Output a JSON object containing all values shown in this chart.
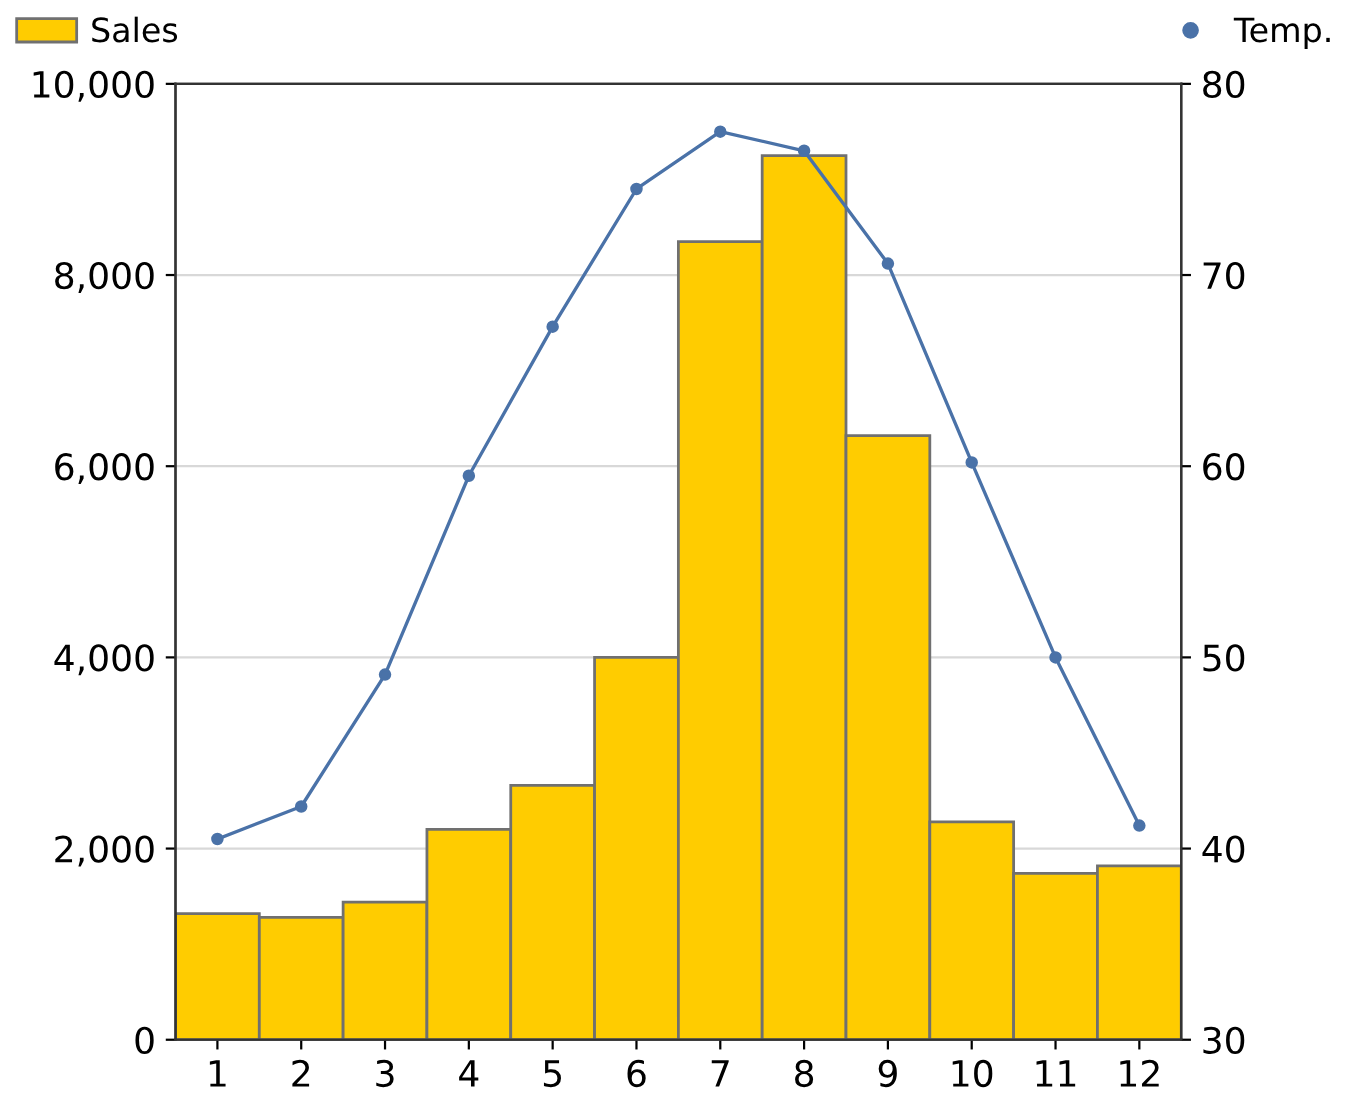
{
  "chart_data": {
    "type": "bar",
    "categories": [
      "1",
      "2",
      "3",
      "4",
      "5",
      "6",
      "7",
      "8",
      "9",
      "10",
      "11",
      "12"
    ],
    "series": [
      {
        "name": "Sales",
        "color": "#ffcc00",
        "values": [
          1320,
          1280,
          1440,
          2200,
          2660,
          4000,
          8350,
          9250,
          6320,
          2280,
          1740,
          1820
        ]
      },
      {
        "name": "Temp.",
        "type": "line",
        "axis": "y2",
        "color": "#4a72a8",
        "marker": "circle",
        "values": [
          40.5,
          42.2,
          49.1,
          59.5,
          67.3,
          74.5,
          77.5,
          76.5,
          70.6,
          60.2,
          50.0,
          41.2
        ]
      }
    ],
    "ylim": [
      0,
      10000
    ],
    "yticks": [
      {
        "value": 0,
        "label": "0"
      },
      {
        "value": 2000,
        "label": "2,000"
      },
      {
        "value": 4000,
        "label": "4,000"
      },
      {
        "value": 6000,
        "label": "6,000"
      },
      {
        "value": 8000,
        "label": "8,000"
      },
      {
        "value": 10000,
        "label": "10,000"
      }
    ],
    "y2lim": [
      30,
      80
    ],
    "y2ticks": [
      30,
      40,
      50,
      60,
      70,
      80
    ],
    "grid": "y",
    "legend": "top"
  }
}
